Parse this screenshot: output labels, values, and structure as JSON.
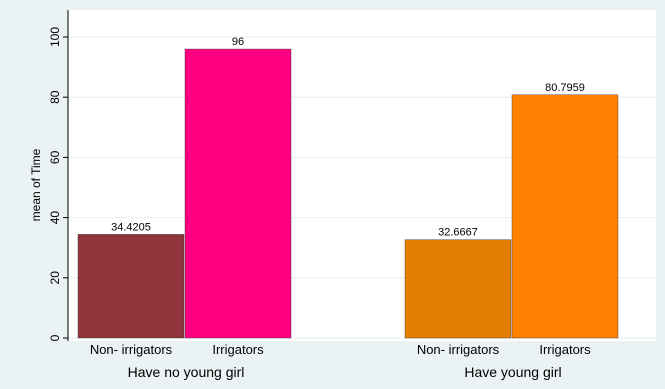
{
  "chart_data": {
    "type": "bar",
    "title": "",
    "ylabel": "mean of Time",
    "ylim": [
      0,
      100
    ],
    "yticks": [
      0,
      20,
      40,
      60,
      80,
      100
    ],
    "grid": true,
    "legend": "none",
    "groups": [
      {
        "label": "Have no young girl",
        "bars": [
          {
            "category": "Non- irrigators",
            "value": 34.4205,
            "value_label": "34.4205",
            "color": "#90353b"
          },
          {
            "category": "Irrigators",
            "value": 96,
            "value_label": "96",
            "color": "#ff0080"
          }
        ]
      },
      {
        "label": "Have young girl",
        "bars": [
          {
            "category": "Non- irrigators",
            "value": 32.6667,
            "value_label": "32.6667",
            "color": "#e37e00"
          },
          {
            "category": "Irrigators",
            "value": 80.7959,
            "value_label": "80.7959",
            "color": "#ff7f00"
          }
        ]
      }
    ]
  }
}
